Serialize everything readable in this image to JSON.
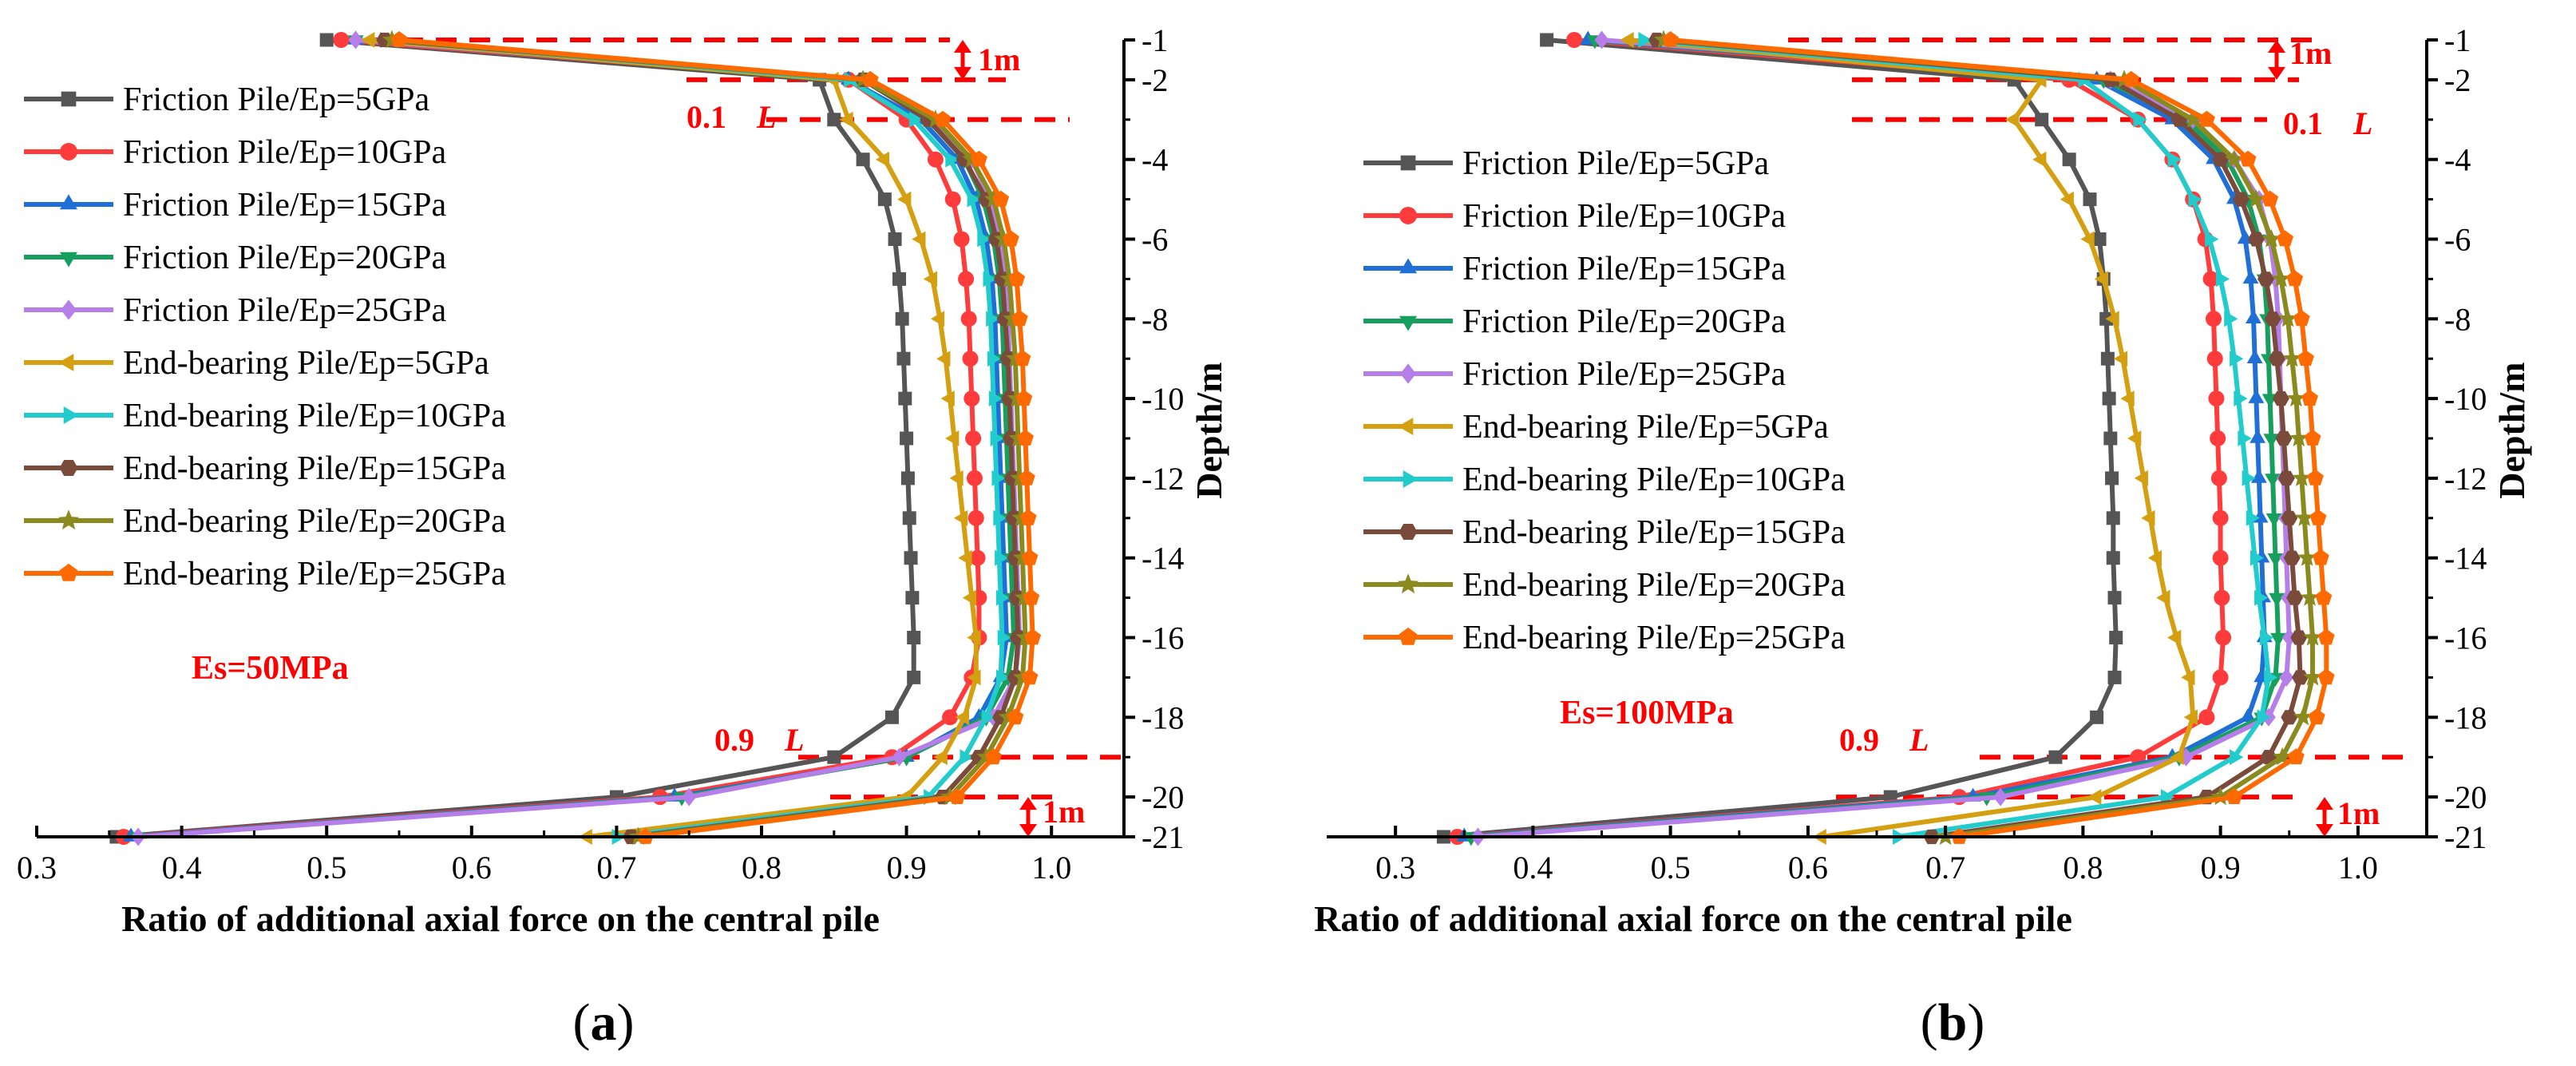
{
  "chart_data": [
    {
      "type": "line",
      "panel": "a",
      "caption_letter": "a",
      "xlabel": "Ratio of additional axial force on the central pile",
      "ylabel": "Depth/m",
      "xlim": [
        0.3,
        1.05
      ],
      "ylim": [
        -21,
        -1
      ],
      "xticks": [
        "0.3",
        "0.4",
        "0.5",
        "0.6",
        "0.7",
        "0.8",
        "0.9",
        "1.0"
      ],
      "yticks": [
        "-1",
        "-2",
        "-4",
        "-6",
        "-8",
        "-10",
        "-12",
        "-14",
        "-16",
        "-18",
        "-20",
        "-21"
      ],
      "annotation": "Es=50MPa",
      "reference_lines": {
        "top_1m_label": "1m",
        "label_0_1L": "0.1",
        "label_0_9L": "0.9",
        "L_symbol": "L",
        "bottom_1m_label": "1m"
      },
      "depths": [
        -1,
        -2,
        -3,
        -4,
        -5,
        -6,
        -7,
        -8,
        -9,
        -10,
        -11,
        -12,
        -13,
        -14,
        -15,
        -16,
        -17,
        -18,
        -19,
        -20,
        -21
      ],
      "series": [
        {
          "name": "Friction Pile/Ep=5GPa",
          "color": "#555555",
          "marker": "square",
          "values": [
            0.5,
            0.84,
            0.85,
            0.87,
            0.885,
            0.892,
            0.895,
            0.897,
            0.898,
            0.899,
            0.9,
            0.901,
            0.902,
            0.903,
            0.904,
            0.905,
            0.905,
            0.89,
            0.85,
            0.7,
            0.355
          ]
        },
        {
          "name": "Friction Pile/Ep=10GPa",
          "color": "#ff3b3b",
          "marker": "circle",
          "values": [
            0.51,
            0.86,
            0.9,
            0.92,
            0.932,
            0.938,
            0.941,
            0.943,
            0.944,
            0.945,
            0.946,
            0.947,
            0.948,
            0.949,
            0.95,
            0.95,
            0.945,
            0.93,
            0.89,
            0.73,
            0.36
          ]
        },
        {
          "name": "Friction Pile/Ep=15GPa",
          "color": "#1f6fd6",
          "marker": "triangle-up",
          "values": [
            0.52,
            0.86,
            0.91,
            0.935,
            0.948,
            0.955,
            0.959,
            0.961,
            0.962,
            0.963,
            0.964,
            0.965,
            0.966,
            0.967,
            0.968,
            0.969,
            0.965,
            0.95,
            0.9,
            0.74,
            0.365
          ]
        },
        {
          "name": "Friction Pile/Ep=20GPa",
          "color": "#17a05d",
          "marker": "triangle-down",
          "values": [
            0.52,
            0.87,
            0.915,
            0.94,
            0.953,
            0.96,
            0.964,
            0.966,
            0.967,
            0.968,
            0.969,
            0.97,
            0.971,
            0.972,
            0.973,
            0.974,
            0.97,
            0.955,
            0.9,
            0.745,
            0.37
          ]
        },
        {
          "name": "Friction Pile/Ep=25GPa",
          "color": "#b57ee8",
          "marker": "diamond",
          "values": [
            0.52,
            0.87,
            0.918,
            0.945,
            0.958,
            0.964,
            0.968,
            0.97,
            0.971,
            0.972,
            0.973,
            0.974,
            0.975,
            0.976,
            0.977,
            0.978,
            0.975,
            0.96,
            0.895,
            0.75,
            0.37
          ]
        },
        {
          "name": "End-bearing Pile/Ep=5GPa",
          "color": "#d4a012",
          "marker": "triangle-left",
          "values": [
            0.53,
            0.85,
            0.86,
            0.885,
            0.9,
            0.91,
            0.918,
            0.923,
            0.927,
            0.93,
            0.933,
            0.936,
            0.939,
            0.942,
            0.945,
            0.948,
            0.948,
            0.94,
            0.925,
            0.9,
            0.68
          ]
        },
        {
          "name": "End-bearing Pile/Ep=10GPa",
          "color": "#22cccc",
          "marker": "triangle-right",
          "values": [
            0.54,
            0.86,
            0.905,
            0.93,
            0.945,
            0.952,
            0.956,
            0.958,
            0.959,
            0.96,
            0.961,
            0.962,
            0.963,
            0.964,
            0.965,
            0.966,
            0.965,
            0.955,
            0.94,
            0.915,
            0.7
          ]
        },
        {
          "name": "End-bearing Pile/Ep=15GPa",
          "color": "#7a4a3a",
          "marker": "hexagon",
          "values": [
            0.54,
            0.87,
            0.915,
            0.94,
            0.955,
            0.962,
            0.966,
            0.968,
            0.97,
            0.971,
            0.972,
            0.973,
            0.974,
            0.975,
            0.976,
            0.977,
            0.975,
            0.965,
            0.95,
            0.925,
            0.71
          ]
        },
        {
          "name": "End-bearing Pile/Ep=20GPa",
          "color": "#8a8a1e",
          "marker": "star",
          "values": [
            0.545,
            0.87,
            0.92,
            0.945,
            0.96,
            0.967,
            0.971,
            0.973,
            0.975,
            0.976,
            0.977,
            0.978,
            0.979,
            0.98,
            0.981,
            0.982,
            0.98,
            0.97,
            0.955,
            0.93,
            0.715
          ]
        },
        {
          "name": "End-bearing Pile/Ep=25GPa",
          "color": "#ff6a00",
          "marker": "pentagon",
          "values": [
            0.55,
            0.875,
            0.925,
            0.95,
            0.965,
            0.972,
            0.976,
            0.978,
            0.98,
            0.981,
            0.982,
            0.983,
            0.984,
            0.985,
            0.986,
            0.987,
            0.985,
            0.975,
            0.96,
            0.935,
            0.72
          ]
        }
      ]
    },
    {
      "type": "line",
      "panel": "b",
      "caption_letter": "b",
      "xlabel": "Ratio of additional axial force on the central pile",
      "ylabel": "Depth/m",
      "xlim": [
        0.25,
        1.05
      ],
      "ylim": [
        -21,
        -1
      ],
      "xticks": [
        "0.3",
        "0.4",
        "0.5",
        "0.6",
        "0.7",
        "0.8",
        "0.9",
        "1.0"
      ],
      "yticks": [
        "-1",
        "-2",
        "-4",
        "-6",
        "-8",
        "-10",
        "-12",
        "-14",
        "-16",
        "-18",
        "-20",
        "-21"
      ],
      "annotation": "Es=100MPa",
      "reference_lines": {
        "top_1m_label": "1m",
        "label_0_1L": "0.1",
        "label_0_9L": "0.9",
        "L_symbol": "L",
        "bottom_1m_label": "1m"
      },
      "depths": [
        -1,
        -2,
        -3,
        -4,
        -5,
        -6,
        -7,
        -8,
        -9,
        -10,
        -11,
        -12,
        -13,
        -14,
        -15,
        -16,
        -17,
        -18,
        -19,
        -20,
        -21
      ],
      "series": [
        {
          "name": "Friction Pile/Ep=5GPa",
          "color": "#555555",
          "marker": "square",
          "values": [
            0.41,
            0.75,
            0.77,
            0.79,
            0.805,
            0.812,
            0.815,
            0.817,
            0.818,
            0.819,
            0.82,
            0.821,
            0.822,
            0.822,
            0.823,
            0.824,
            0.823,
            0.81,
            0.78,
            0.66,
            0.335
          ]
        },
        {
          "name": "Friction Pile/Ep=10GPa",
          "color": "#ff3b3b",
          "marker": "circle",
          "values": [
            0.43,
            0.79,
            0.84,
            0.865,
            0.88,
            0.889,
            0.893,
            0.895,
            0.896,
            0.897,
            0.898,
            0.899,
            0.9,
            0.9,
            0.901,
            0.902,
            0.9,
            0.89,
            0.84,
            0.71,
            0.345
          ]
        },
        {
          "name": "Friction Pile/Ep=15GPa",
          "color": "#1f6fd6",
          "marker": "triangle-up",
          "values": [
            0.44,
            0.81,
            0.865,
            0.895,
            0.91,
            0.918,
            0.922,
            0.924,
            0.925,
            0.926,
            0.927,
            0.928,
            0.929,
            0.93,
            0.931,
            0.932,
            0.93,
            0.92,
            0.865,
            0.72,
            0.35
          ]
        },
        {
          "name": "Friction Pile/Ep=20GPa",
          "color": "#17a05d",
          "marker": "triangle-down",
          "values": [
            0.445,
            0.815,
            0.875,
            0.905,
            0.92,
            0.928,
            0.932,
            0.934,
            0.935,
            0.936,
            0.937,
            0.938,
            0.939,
            0.94,
            0.941,
            0.942,
            0.94,
            0.93,
            0.87,
            0.73,
            0.355
          ]
        },
        {
          "name": "Friction Pile/Ep=25GPa",
          "color": "#b57ee8",
          "marker": "diamond",
          "values": [
            0.45,
            0.82,
            0.88,
            0.91,
            0.928,
            0.936,
            0.94,
            0.942,
            0.943,
            0.944,
            0.945,
            0.946,
            0.947,
            0.948,
            0.949,
            0.95,
            0.948,
            0.935,
            0.875,
            0.74,
            0.36
          ]
        },
        {
          "name": "End-bearing Pile/Ep=5GPa",
          "color": "#d4a012",
          "marker": "triangle-left",
          "values": [
            0.47,
            0.77,
            0.75,
            0.77,
            0.79,
            0.805,
            0.815,
            0.823,
            0.829,
            0.834,
            0.839,
            0.844,
            0.849,
            0.854,
            0.86,
            0.868,
            0.878,
            0.88,
            0.87,
            0.81,
            0.61
          ]
        },
        {
          "name": "End-bearing Pile/Ep=10GPa",
          "color": "#22cccc",
          "marker": "triangle-right",
          "values": [
            0.48,
            0.8,
            0.84,
            0.865,
            0.88,
            0.892,
            0.9,
            0.906,
            0.91,
            0.913,
            0.916,
            0.919,
            0.922,
            0.925,
            0.928,
            0.932,
            0.935,
            0.93,
            0.91,
            0.86,
            0.665
          ]
        },
        {
          "name": "End-bearing Pile/Ep=15GPa",
          "color": "#7a4a3a",
          "marker": "hexagon",
          "values": [
            0.49,
            0.82,
            0.87,
            0.9,
            0.915,
            0.926,
            0.933,
            0.938,
            0.941,
            0.944,
            0.946,
            0.948,
            0.95,
            0.952,
            0.954,
            0.957,
            0.958,
            0.95,
            0.935,
            0.89,
            0.69
          ]
        },
        {
          "name": "End-bearing Pile/Ep=20GPa",
          "color": "#8a8a1e",
          "marker": "star",
          "values": [
            0.495,
            0.83,
            0.88,
            0.91,
            0.926,
            0.937,
            0.944,
            0.949,
            0.952,
            0.955,
            0.957,
            0.959,
            0.961,
            0.963,
            0.965,
            0.967,
            0.967,
            0.96,
            0.945,
            0.9,
            0.7
          ]
        },
        {
          "name": "End-bearing Pile/Ep=25GPa",
          "color": "#ff6a00",
          "marker": "pentagon",
          "values": [
            0.5,
            0.835,
            0.89,
            0.92,
            0.936,
            0.947,
            0.954,
            0.959,
            0.962,
            0.965,
            0.967,
            0.969,
            0.971,
            0.973,
            0.975,
            0.977,
            0.977,
            0.97,
            0.955,
            0.91,
            0.71
          ]
        }
      ]
    }
  ]
}
